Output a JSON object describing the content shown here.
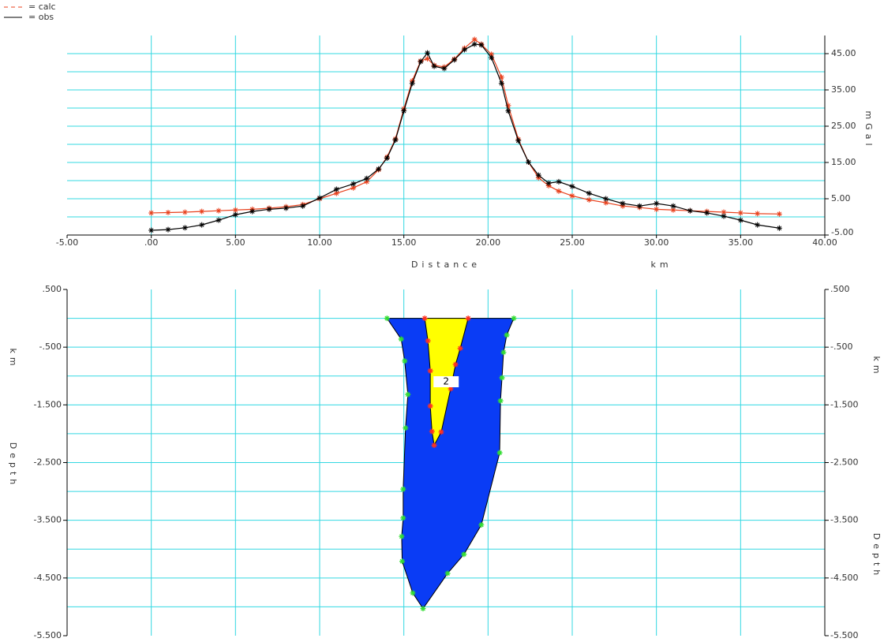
{
  "chart_data": [
    {
      "type": "line",
      "x_label": "Distance",
      "x_unit": "km",
      "y_label": "mGal",
      "xlim": [
        -5,
        40
      ],
      "xticks": [
        {
          "value": -5,
          "label": "-5.00"
        },
        {
          "value": 0,
          "label": ".00"
        },
        {
          "value": 5,
          "label": "5.00"
        },
        {
          "value": 10,
          "label": "10.00"
        },
        {
          "value": 15,
          "label": "15.00"
        },
        {
          "value": 20,
          "label": "20.00"
        },
        {
          "value": 25,
          "label": "25.00"
        },
        {
          "value": 30,
          "label": "30.00"
        },
        {
          "value": 35,
          "label": "35.00"
        },
        {
          "value": 40,
          "label": "40.00"
        }
      ],
      "ylim": [
        -5,
        50
      ],
      "yticks": [
        {
          "value": 45,
          "label": "45.00"
        },
        {
          "value": 35,
          "label": "35.00"
        },
        {
          "value": 25,
          "label": "25.00"
        },
        {
          "value": 15,
          "label": "15.00"
        },
        {
          "value": 5,
          "label": "5.00"
        },
        {
          "value": -5,
          "label": "-5.00"
        }
      ],
      "ygrid": [
        0,
        5,
        10,
        15,
        20,
        25,
        30,
        35,
        40,
        45
      ],
      "grid": true,
      "grid_color": "#33d8e2",
      "x": [
        0,
        1,
        2,
        3,
        4,
        5,
        6,
        7,
        8,
        9,
        10,
        11,
        12,
        12.8,
        13.5,
        14,
        14.5,
        15,
        15.5,
        16,
        16.4,
        16.8,
        17.4,
        18,
        18.6,
        19.2,
        19.6,
        20.2,
        20.8,
        21.2,
        21.8,
        22.4,
        23,
        23.6,
        24.2,
        25,
        26,
        27,
        28,
        29,
        30,
        31,
        32,
        33,
        34,
        35,
        36,
        37.3
      ],
      "series": [
        {
          "name": "= calc",
          "color": "#e8401c",
          "dash": true,
          "values": [
            1.1,
            1.2,
            1.3,
            1.5,
            1.7,
            1.9,
            2.1,
            2.4,
            2.8,
            3.4,
            5.0,
            6.5,
            8.0,
            9.7,
            13.0,
            16.5,
            21.5,
            29.8,
            37.5,
            43.0,
            43.6,
            41.8,
            41.3,
            43.5,
            46.5,
            48.9,
            47.6,
            44.8,
            38.5,
            30.7,
            21.4,
            15.1,
            10.8,
            8.6,
            7.1,
            5.8,
            4.7,
            3.9,
            3.0,
            2.6,
            2.1,
            1.9,
            1.7,
            1.5,
            1.3,
            1.1,
            0.9,
            0.8
          ]
        },
        {
          "name": "= obs",
          "color": "#000000",
          "dash": false,
          "values": [
            -3.7,
            -3.5,
            -3.0,
            -2.2,
            -0.9,
            0.6,
            1.5,
            2.1,
            2.4,
            3.0,
            5.2,
            7.6,
            9.1,
            10.6,
            13.2,
            16.2,
            21.2,
            29.2,
            36.8,
            42.8,
            45.2,
            41.5,
            40.9,
            43.3,
            46.1,
            47.6,
            47.4,
            43.9,
            36.8,
            29.2,
            21.0,
            15.1,
            11.5,
            9.3,
            9.7,
            8.4,
            6.5,
            5.0,
            3.7,
            3.0,
            3.7,
            3.0,
            1.7,
            1.1,
            0.2,
            -0.9,
            -2.2,
            -3.1
          ]
        }
      ]
    },
    {
      "type": "polygon",
      "y_label": "Depth",
      "y_unit": "km",
      "xlim": [
        -5,
        40
      ],
      "xgrid": [
        0,
        5,
        10,
        15,
        20,
        25,
        30,
        35
      ],
      "ylim": [
        -5.5,
        0.5
      ],
      "yticks": [
        {
          "value": 0.5,
          "label": ".500"
        },
        {
          "value": -0.5,
          "label": "-.500"
        },
        {
          "value": -1.5,
          "label": "-1.500"
        },
        {
          "value": -2.5,
          "label": "-2.500"
        },
        {
          "value": -3.5,
          "label": "-3.500"
        },
        {
          "value": -4.5,
          "label": "-4.500"
        },
        {
          "value": -5.5,
          "label": "-5.500"
        }
      ],
      "ygrid": [
        0,
        -0.5,
        -1,
        -1.5,
        -2,
        -2.5,
        -3,
        -3.5,
        -4,
        -4.5,
        -5
      ],
      "grid": true,
      "grid_color": "#33d8e2",
      "bodies": [
        {
          "color": "#0a3cf5",
          "vertex_color": "#33dd33",
          "x": [
            14.0,
            14.84,
            15.05,
            15.24,
            15.1,
            14.96,
            14.96,
            14.87,
            14.9,
            15.53,
            16.14,
            17.6,
            18.57,
            19.6,
            20.69,
            20.74,
            20.83,
            20.92,
            21.11,
            21.53
          ],
          "depth": [
            0,
            -0.36,
            -0.74,
            -1.32,
            -1.9,
            -2.96,
            -3.46,
            -3.78,
            -4.21,
            -4.76,
            -5.03,
            -4.42,
            -4.09,
            -3.58,
            -2.33,
            -1.43,
            -1.03,
            -0.59,
            -0.29,
            0
          ]
        },
        {
          "color": "#ffff00",
          "vertex_color": "#ff3020",
          "label": "2",
          "x": [
            16.24,
            16.43,
            16.57,
            16.57,
            16.67,
            16.8,
            17.22,
            17.78,
            18.07,
            18.35,
            18.82
          ],
          "depth": [
            0,
            -0.39,
            -0.91,
            -1.52,
            -1.96,
            -2.2,
            -1.97,
            -1.22,
            -0.8,
            -0.52,
            0
          ]
        }
      ]
    }
  ]
}
